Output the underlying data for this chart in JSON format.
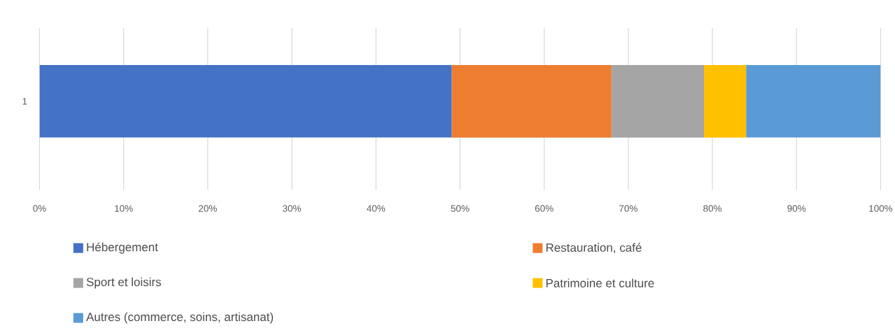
{
  "chart_data": {
    "type": "bar",
    "orientation": "horizontal",
    "stacked": true,
    "categories": [
      "1"
    ],
    "series": [
      {
        "name": "Hébergement",
        "color": "#4472c4",
        "values": [
          49
        ]
      },
      {
        "name": "Restauration, café",
        "color": "#ed7d31",
        "values": [
          19
        ]
      },
      {
        "name": "Sport et loisirs",
        "color": "#a5a5a5",
        "values": [
          11
        ]
      },
      {
        "name": "Patrimoine et culture",
        "color": "#ffc000",
        "values": [
          5
        ]
      },
      {
        "name": "Autres (commerce, soins, artisanat)",
        "color": "#5b9bd5",
        "values": [
          16
        ]
      }
    ],
    "xlim": [
      0,
      100
    ],
    "xticks": [
      {
        "value": 0,
        "label": "0%"
      },
      {
        "value": 10,
        "label": "10%"
      },
      {
        "value": 20,
        "label": "20%"
      },
      {
        "value": 30,
        "label": "30%"
      },
      {
        "value": 40,
        "label": "40%"
      },
      {
        "value": 50,
        "label": "50%"
      },
      {
        "value": 60,
        "label": "60%"
      },
      {
        "value": 70,
        "label": "70%"
      },
      {
        "value": 80,
        "label": "80%"
      },
      {
        "value": 90,
        "label": "90%"
      },
      {
        "value": 100,
        "label": "100%"
      }
    ],
    "grid": "x",
    "legend": "bottom"
  }
}
